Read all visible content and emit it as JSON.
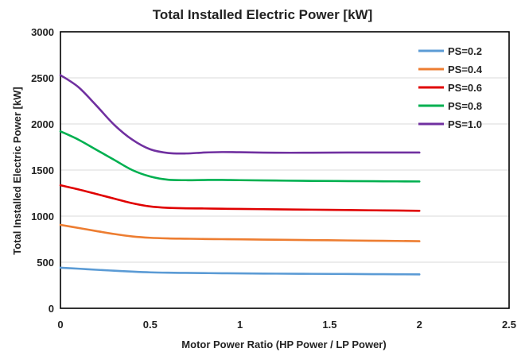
{
  "chart_data": {
    "type": "line",
    "title": "Total Installed Electric Power [kW]",
    "xlabel": "Motor Power Ratio (HP Power / LP Power)",
    "ylabel": "Total Installed Electric Power [kW]",
    "xlim": [
      0,
      2.5
    ],
    "ylim": [
      0,
      3000
    ],
    "xticks": [
      0,
      0.5,
      1,
      1.5,
      2,
      2.5
    ],
    "xtick_labels": [
      "0",
      "0.5",
      "1",
      "1.5",
      "2",
      "2.5"
    ],
    "yticks": [
      0,
      500,
      1000,
      1500,
      2000,
      2500,
      3000
    ],
    "ytick_labels": [
      "0",
      "500",
      "1000",
      "1500",
      "2000",
      "2500",
      "3000"
    ],
    "grid": "horizontal",
    "legend_position": "top-right",
    "x": [
      0,
      0.1,
      0.2,
      0.3,
      0.4,
      0.5,
      0.6,
      0.7,
      0.8,
      0.9,
      1.0,
      1.2,
      1.4,
      1.6,
      1.8,
      2.0
    ],
    "series": [
      {
        "name": "PS=0.2",
        "color": "#5b9bd5",
        "values": [
          440,
          430,
          418,
          408,
          398,
          390,
          386,
          384,
          382,
          380,
          379,
          376,
          374,
          372,
          370,
          368
        ]
      },
      {
        "name": "PS=0.4",
        "color": "#ed7d31",
        "values": [
          905,
          872,
          838,
          806,
          780,
          765,
          758,
          755,
          752,
          750,
          748,
          744,
          740,
          736,
          732,
          728
        ]
      },
      {
        "name": "PS=0.6",
        "color": "#e00000",
        "values": [
          1335,
          1290,
          1240,
          1190,
          1140,
          1105,
          1090,
          1085,
          1083,
          1080,
          1078,
          1074,
          1070,
          1066,
          1062,
          1058
        ]
      },
      {
        "name": "PS=0.8",
        "color": "#00b050",
        "values": [
          1920,
          1830,
          1720,
          1610,
          1500,
          1430,
          1395,
          1390,
          1392,
          1393,
          1390,
          1386,
          1382,
          1380,
          1378,
          1376
        ]
      },
      {
        "name": "PS=1.0",
        "color": "#7030a0",
        "values": [
          2530,
          2400,
          2200,
          1990,
          1830,
          1725,
          1685,
          1680,
          1690,
          1695,
          1693,
          1688,
          1688,
          1690,
          1690,
          1690
        ]
      }
    ]
  }
}
